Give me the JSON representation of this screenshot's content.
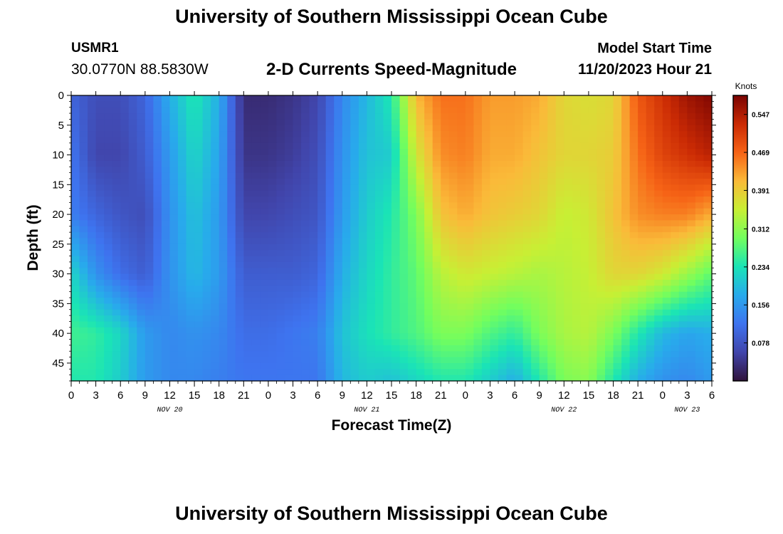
{
  "header": {
    "title": "University of Southern Mississippi Ocean Cube",
    "station": "USMR1",
    "coordinates": "30.0770N  88.5830W",
    "subtitle": "2-D Currents Speed-Magnitude",
    "start_label": "Model Start Time",
    "start_value": "11/20/2023 Hour 21"
  },
  "footer": {
    "title": "University of Southern Mississippi Ocean Cube"
  },
  "chart_data": {
    "type": "heatmap",
    "xlabel": "Forecast Time(Z)",
    "ylabel": "Depth (ft)",
    "x_tick_labels": [
      "0",
      "3",
      "6",
      "9",
      "12",
      "15",
      "18",
      "21",
      "0",
      "3",
      "6",
      "9",
      "12",
      "15",
      "18",
      "21",
      "0",
      "3",
      "6",
      "9",
      "12",
      "15",
      "18",
      "21",
      "0",
      "3",
      "6"
    ],
    "day_labels": [
      {
        "label": "NOV 20",
        "tick_index": 4
      },
      {
        "label": "NOV 21",
        "tick_index": 12
      },
      {
        "label": "NOV 22",
        "tick_index": 20
      },
      {
        "label": "NOV 23",
        "tick_index": 25
      }
    ],
    "y_ticks": [
      0,
      5,
      10,
      15,
      20,
      25,
      30,
      35,
      40,
      45
    ],
    "ylim": [
      0,
      48
    ],
    "y_inverted": true,
    "x_range_hours": [
      0,
      78
    ],
    "colorbar": {
      "title": "Knots",
      "min": 0.0,
      "max": 0.586,
      "ticks": [
        0.078,
        0.156,
        0.234,
        0.312,
        0.391,
        0.469,
        0.547
      ]
    },
    "grid_depths": [
      0,
      10,
      20,
      30,
      40,
      48
    ],
    "grid_hours": [
      0,
      3,
      6,
      9,
      12,
      15,
      18,
      21,
      24,
      27,
      30,
      33,
      36,
      39,
      42,
      45,
      48,
      51,
      54,
      57,
      60,
      63,
      66,
      69,
      72,
      75,
      78
    ],
    "values": [
      [
        0.1,
        0.07,
        0.07,
        0.1,
        0.18,
        0.24,
        0.18,
        0.03,
        0.03,
        0.04,
        0.06,
        0.14,
        0.19,
        0.24,
        0.41,
        0.46,
        0.46,
        0.43,
        0.43,
        0.42,
        0.38,
        0.37,
        0.38,
        0.48,
        0.52,
        0.56,
        0.58
      ],
      [
        0.12,
        0.06,
        0.06,
        0.09,
        0.16,
        0.22,
        0.17,
        0.04,
        0.04,
        0.05,
        0.07,
        0.15,
        0.2,
        0.21,
        0.36,
        0.44,
        0.45,
        0.42,
        0.42,
        0.4,
        0.38,
        0.38,
        0.39,
        0.46,
        0.5,
        0.52,
        0.54
      ],
      [
        0.13,
        0.1,
        0.08,
        0.07,
        0.15,
        0.2,
        0.16,
        0.06,
        0.06,
        0.07,
        0.08,
        0.16,
        0.21,
        0.24,
        0.3,
        0.4,
        0.42,
        0.4,
        0.39,
        0.38,
        0.35,
        0.36,
        0.4,
        0.44,
        0.45,
        0.45,
        0.42
      ],
      [
        0.22,
        0.15,
        0.11,
        0.09,
        0.15,
        0.19,
        0.16,
        0.09,
        0.09,
        0.09,
        0.1,
        0.18,
        0.22,
        0.25,
        0.28,
        0.34,
        0.36,
        0.35,
        0.34,
        0.33,
        0.34,
        0.35,
        0.38,
        0.38,
        0.36,
        0.32,
        0.28
      ],
      [
        0.26,
        0.25,
        0.22,
        0.16,
        0.14,
        0.15,
        0.14,
        0.11,
        0.11,
        0.12,
        0.13,
        0.2,
        0.23,
        0.25,
        0.27,
        0.3,
        0.3,
        0.27,
        0.25,
        0.3,
        0.33,
        0.34,
        0.3,
        0.24,
        0.19,
        0.17,
        0.18
      ],
      [
        0.24,
        0.24,
        0.21,
        0.16,
        0.14,
        0.14,
        0.13,
        0.12,
        0.12,
        0.12,
        0.12,
        0.19,
        0.21,
        0.2,
        0.22,
        0.24,
        0.24,
        0.21,
        0.18,
        0.24,
        0.3,
        0.31,
        0.24,
        0.18,
        0.15,
        0.14,
        0.16
      ]
    ]
  }
}
